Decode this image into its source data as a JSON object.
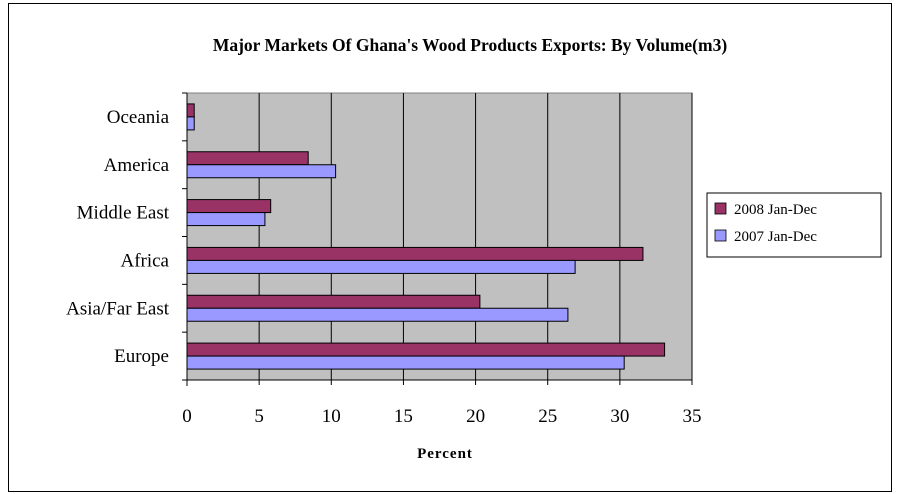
{
  "chart_data": {
    "type": "bar",
    "orientation": "horizontal",
    "title": "Major Markets Of Ghana's Wood Products Exports: By Volume(m3)",
    "xlabel": "Percent",
    "ylabel": "",
    "categories": [
      "Europe",
      "Asia/Far East",
      "Africa",
      "Middle East",
      "America",
      "Oceania"
    ],
    "series": [
      {
        "name": "2008 Jan-Dec",
        "color": "#993366",
        "values": [
          33.1,
          20.3,
          31.6,
          5.8,
          8.4,
          0.5
        ]
      },
      {
        "name": "2007 Jan-Dec",
        "color": "#9999ff",
        "values": [
          30.3,
          26.4,
          26.9,
          5.4,
          10.3,
          0.5
        ]
      }
    ],
    "xlim": [
      0,
      35
    ],
    "xticks": [
      0,
      5,
      10,
      15,
      20,
      25,
      30,
      35
    ],
    "grid": "vertical",
    "plot_background": "#c0c0c0",
    "legend_position": "right"
  }
}
